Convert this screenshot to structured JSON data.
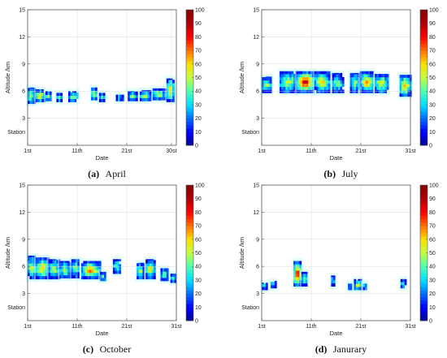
{
  "figure": {
    "colormap": [
      "#00008f",
      "#0000ff",
      "#006fff",
      "#00dfff",
      "#4fffaf",
      "#bfff3f",
      "#ffdf00",
      "#ff6f00",
      "#ff0000",
      "#af0000",
      "#800000"
    ],
    "colorbar_ticks": [
      "0",
      "10",
      "20",
      "30",
      "40",
      "50",
      "60",
      "70",
      "80",
      "90",
      "100"
    ]
  },
  "chart_data": [
    {
      "type": "heatmap",
      "caption_letter": "(a)",
      "caption_word": "April",
      "xlabel": "Date",
      "ylabel": "Altitude /km",
      "xlim": [
        1,
        31
      ],
      "ylim": [
        0,
        15
      ],
      "x_ticks": [
        {
          "v": 1,
          "label": "1st"
        },
        {
          "v": 11,
          "label": "11th"
        },
        {
          "v": 21,
          "label": "21st"
        },
        {
          "v": 30,
          "label": "30st"
        }
      ],
      "y_ticks": [
        {
          "v": 3,
          "label": "3"
        },
        {
          "v": 6,
          "label": "6"
        },
        {
          "v": 9,
          "label": "9"
        },
        {
          "v": 12,
          "label": "12"
        },
        {
          "v": 15,
          "label": "15"
        }
      ],
      "station_label": "Station",
      "station_alt": 1.5,
      "colorbar_range": [
        0,
        100
      ],
      "clusters": [
        {
          "x0": 1.0,
          "x1": 2.4,
          "ymin": 4.6,
          "ymax": 6.4,
          "peak": 55
        },
        {
          "x0": 2.6,
          "x1": 4.4,
          "ymin": 4.8,
          "ymax": 6.2,
          "peak": 68
        },
        {
          "x0": 4.6,
          "x1": 5.8,
          "ymin": 4.9,
          "ymax": 6.0,
          "peak": 50
        },
        {
          "x0": 6.8,
          "x1": 8.0,
          "ymin": 4.8,
          "ymax": 5.8,
          "peak": 45
        },
        {
          "x0": 9.2,
          "x1": 11.2,
          "ymin": 4.8,
          "ymax": 6.0,
          "peak": 50
        },
        {
          "x0": 13.8,
          "x1": 15.0,
          "ymin": 5.0,
          "ymax": 6.4,
          "peak": 58
        },
        {
          "x0": 15.4,
          "x1": 16.6,
          "ymin": 4.8,
          "ymax": 5.8,
          "peak": 45
        },
        {
          "x0": 18.8,
          "x1": 20.2,
          "ymin": 4.9,
          "ymax": 5.6,
          "peak": 40
        },
        {
          "x0": 21.2,
          "x1": 23.0,
          "ymin": 4.9,
          "ymax": 6.0,
          "peak": 48
        },
        {
          "x0": 23.6,
          "x1": 25.8,
          "ymin": 4.9,
          "ymax": 6.1,
          "peak": 52
        },
        {
          "x0": 26.2,
          "x1": 28.8,
          "ymin": 5.0,
          "ymax": 6.3,
          "peak": 56
        },
        {
          "x0": 29.0,
          "x1": 30.6,
          "ymin": 4.8,
          "ymax": 7.4,
          "peak": 72
        }
      ]
    },
    {
      "type": "heatmap",
      "caption_letter": "(b)",
      "caption_word": "July",
      "xlabel": "Date",
      "ylabel": "Altitude /km",
      "xlim": [
        1,
        31
      ],
      "ylim": [
        0,
        15
      ],
      "x_ticks": [
        {
          "v": 1,
          "label": "1st"
        },
        {
          "v": 11,
          "label": "11th"
        },
        {
          "v": 21,
          "label": "21st"
        },
        {
          "v": 31,
          "label": "31st"
        }
      ],
      "y_ticks": [
        {
          "v": 3,
          "label": "3"
        },
        {
          "v": 6,
          "label": "6"
        },
        {
          "v": 9,
          "label": "9"
        },
        {
          "v": 12,
          "label": "12"
        },
        {
          "v": 15,
          "label": "15"
        }
      ],
      "station_label": "Station",
      "station_alt": 1.5,
      "colorbar_range": [
        0,
        100
      ],
      "clusters": [
        {
          "x0": 1.0,
          "x1": 3.0,
          "ymin": 5.8,
          "ymax": 7.6,
          "peak": 50
        },
        {
          "x0": 4.6,
          "x1": 8.0,
          "ymin": 5.8,
          "ymax": 8.2,
          "peak": 60
        },
        {
          "x0": 8.0,
          "x1": 11.6,
          "ymin": 5.8,
          "ymax": 8.2,
          "peak": 92
        },
        {
          "x0": 11.6,
          "x1": 14.8,
          "ymin": 5.8,
          "ymax": 8.2,
          "peak": 65
        },
        {
          "x0": 15.2,
          "x1": 17.4,
          "ymin": 5.8,
          "ymax": 8.0,
          "peak": 50
        },
        {
          "x0": 18.8,
          "x1": 20.8,
          "ymin": 5.8,
          "ymax": 8.0,
          "peak": 52
        },
        {
          "x0": 20.8,
          "x1": 23.6,
          "ymin": 5.8,
          "ymax": 8.2,
          "peak": 70
        },
        {
          "x0": 23.8,
          "x1": 26.6,
          "ymin": 5.8,
          "ymax": 7.9,
          "peak": 62
        },
        {
          "x0": 28.8,
          "x1": 31.0,
          "ymin": 5.4,
          "ymax": 7.8,
          "peak": 75
        }
      ]
    },
    {
      "type": "heatmap",
      "caption_letter": "(c)",
      "caption_word": "October",
      "xlabel": "Date",
      "ylabel": "Altitude /km",
      "xlim": [
        1,
        31
      ],
      "ylim": [
        0,
        15
      ],
      "x_ticks": [
        {
          "v": 1,
          "label": "1st"
        },
        {
          "v": 11,
          "label": "11th"
        },
        {
          "v": 21,
          "label": "21st"
        },
        {
          "v": 31,
          "label": "31st"
        }
      ],
      "y_ticks": [
        {
          "v": 3,
          "label": "3"
        },
        {
          "v": 6,
          "label": "6"
        },
        {
          "v": 9,
          "label": "9"
        },
        {
          "v": 12,
          "label": "12"
        },
        {
          "v": 15,
          "label": "15"
        }
      ],
      "station_label": "Station",
      "station_alt": 1.5,
      "colorbar_range": [
        0,
        100
      ],
      "clusters": [
        {
          "x0": 1.0,
          "x1": 2.6,
          "ymin": 4.6,
          "ymax": 7.2,
          "peak": 55
        },
        {
          "x0": 2.6,
          "x1": 5.2,
          "ymin": 4.6,
          "ymax": 7.0,
          "peak": 72
        },
        {
          "x0": 5.2,
          "x1": 7.4,
          "ymin": 4.6,
          "ymax": 6.8,
          "peak": 60
        },
        {
          "x0": 7.4,
          "x1": 9.6,
          "ymin": 4.7,
          "ymax": 6.6,
          "peak": 55
        },
        {
          "x0": 9.8,
          "x1": 11.4,
          "ymin": 4.7,
          "ymax": 6.8,
          "peak": 50
        },
        {
          "x0": 11.8,
          "x1": 15.6,
          "ymin": 4.6,
          "ymax": 6.6,
          "peak": 74
        },
        {
          "x0": 15.6,
          "x1": 16.8,
          "ymin": 4.4,
          "ymax": 5.4,
          "peak": 45
        },
        {
          "x0": 18.2,
          "x1": 19.6,
          "ymin": 5.2,
          "ymax": 6.8,
          "peak": 50
        },
        {
          "x0": 23.0,
          "x1": 24.4,
          "ymin": 4.6,
          "ymax": 6.4,
          "peak": 55
        },
        {
          "x0": 24.8,
          "x1": 26.6,
          "ymin": 4.6,
          "ymax": 6.8,
          "peak": 60
        },
        {
          "x0": 27.8,
          "x1": 29.4,
          "ymin": 4.4,
          "ymax": 5.8,
          "peak": 50
        },
        {
          "x0": 29.8,
          "x1": 30.8,
          "ymin": 4.2,
          "ymax": 5.2,
          "peak": 40
        }
      ]
    },
    {
      "type": "heatmap",
      "caption_letter": "(d)",
      "caption_word": "Janurary",
      "xlabel": "Date",
      "ylabel": "Altitude /km",
      "xlim": [
        1,
        31
      ],
      "ylim": [
        0,
        15
      ],
      "x_ticks": [
        {
          "v": 1,
          "label": "1st"
        },
        {
          "v": 11,
          "label": "11th"
        },
        {
          "v": 21,
          "label": "21st"
        },
        {
          "v": 31,
          "label": "31st"
        }
      ],
      "y_ticks": [
        {
          "v": 3,
          "label": "3"
        },
        {
          "v": 6,
          "label": "6"
        },
        {
          "v": 9,
          "label": "9"
        },
        {
          "v": 12,
          "label": "12"
        },
        {
          "v": 15,
          "label": "15"
        }
      ],
      "station_label": "Station",
      "station_alt": 1.5,
      "colorbar_range": [
        0,
        100
      ],
      "clusters": [
        {
          "x0": 1.0,
          "x1": 2.2,
          "ymin": 3.4,
          "ymax": 4.2,
          "peak": 40
        },
        {
          "x0": 2.8,
          "x1": 3.8,
          "ymin": 3.6,
          "ymax": 4.4,
          "peak": 40
        },
        {
          "x0": 7.4,
          "x1": 9.0,
          "ymin": 3.8,
          "ymax": 6.6,
          "peak": 90
        },
        {
          "x0": 9.0,
          "x1": 10.2,
          "ymin": 3.8,
          "ymax": 5.4,
          "peak": 50
        },
        {
          "x0": 15.0,
          "x1": 15.8,
          "ymin": 3.8,
          "ymax": 5.0,
          "peak": 40
        },
        {
          "x0": 18.4,
          "x1": 19.2,
          "ymin": 3.4,
          "ymax": 4.2,
          "peak": 35
        },
        {
          "x0": 19.6,
          "x1": 21.2,
          "ymin": 3.4,
          "ymax": 4.6,
          "peak": 55
        },
        {
          "x0": 21.4,
          "x1": 22.2,
          "ymin": 3.4,
          "ymax": 4.2,
          "peak": 40
        },
        {
          "x0": 29.0,
          "x1": 30.0,
          "ymin": 3.6,
          "ymax": 4.6,
          "peak": 40
        }
      ]
    }
  ]
}
